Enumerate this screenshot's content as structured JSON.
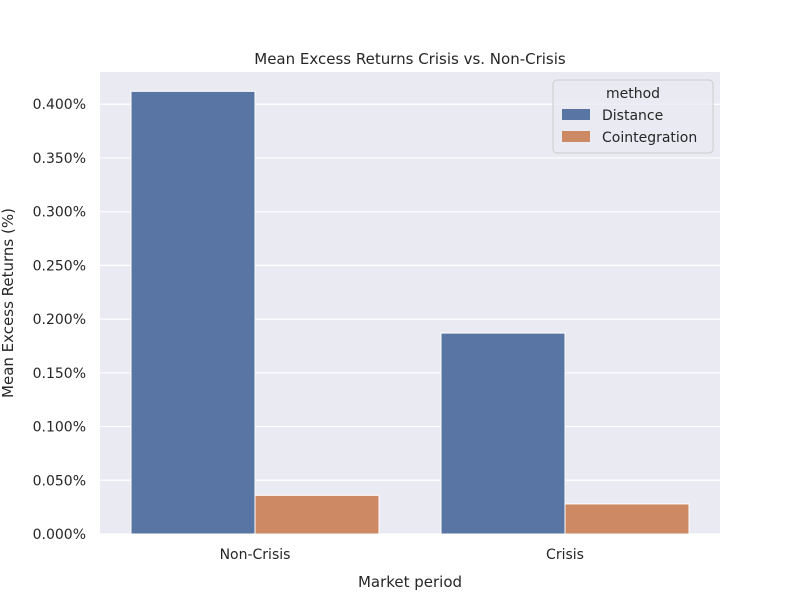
{
  "chart_data": {
    "type": "bar",
    "title": "Mean Excess Returns Crisis vs. Non-Crisis",
    "xlabel": "Market period",
    "ylabel": "Mean Excess Returns (%)",
    "categories": [
      "Non-Crisis",
      "Crisis"
    ],
    "series": [
      {
        "name": "Distance",
        "values": [
          0.412,
          0.187
        ],
        "color": "#5875a4"
      },
      {
        "name": "Cointegration",
        "values": [
          0.036,
          0.028
        ],
        "color": "#cc8963"
      }
    ],
    "ylim": [
      0,
      0.43
    ],
    "yticks": [
      0,
      0.05,
      0.1,
      0.15,
      0.2,
      0.25,
      0.3,
      0.35,
      0.4
    ],
    "ytick_labels": [
      "0.000%",
      "0.050%",
      "0.100%",
      "0.150%",
      "0.200%",
      "0.250%",
      "0.300%",
      "0.350%",
      "0.400%"
    ],
    "legend": {
      "title": "method",
      "position": "top-right"
    },
    "grid": true,
    "background": "#eaeaf2"
  }
}
